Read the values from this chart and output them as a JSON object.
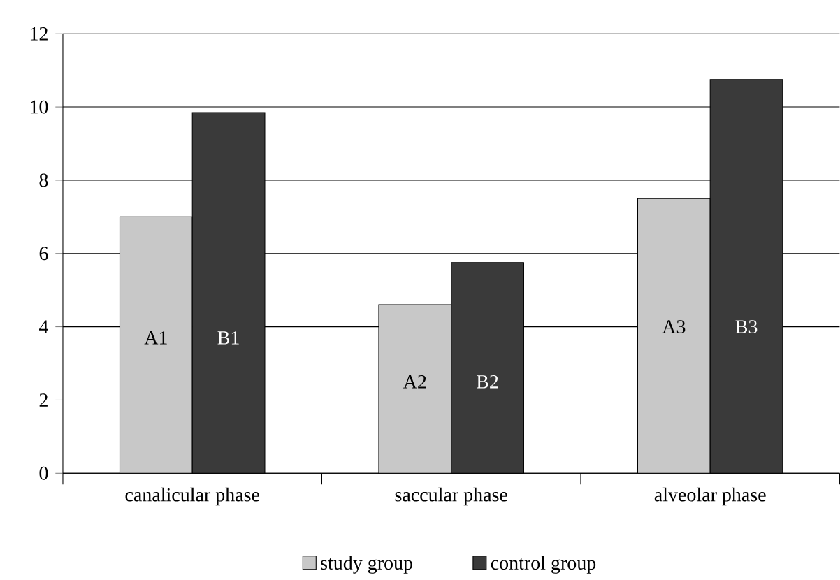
{
  "chart_data": {
    "type": "bar",
    "categories": [
      "canalicular phase",
      "saccular phase",
      "alveolar phase"
    ],
    "series": [
      {
        "name": "study group",
        "color": "#c8c8c8",
        "values": [
          7.0,
          4.6,
          7.5
        ]
      },
      {
        "name": "control group",
        "color": "#3a3a3a",
        "values": [
          9.85,
          5.75,
          10.75
        ]
      }
    ],
    "ylim": [
      0,
      12
    ],
    "yticks": [
      0,
      2,
      4,
      6,
      8,
      10,
      12
    ],
    "grid": "y",
    "legend": "bottom",
    "annotations": [
      {
        "text": "A1",
        "x": "canalicular phase",
        "y": 3.7
      },
      {
        "text": "B1",
        "x": "canalicular phase",
        "y": 3.7
      },
      {
        "text": "A2",
        "x": "saccular phase",
        "y": 2.5
      },
      {
        "text": "B2",
        "x": "saccular phase",
        "y": 2.5
      },
      {
        "text": "A3",
        "x": "alveolar phase",
        "y": 4.0
      },
      {
        "text": "B3",
        "x": "alveolar phase",
        "y": 4.0
      }
    ]
  }
}
